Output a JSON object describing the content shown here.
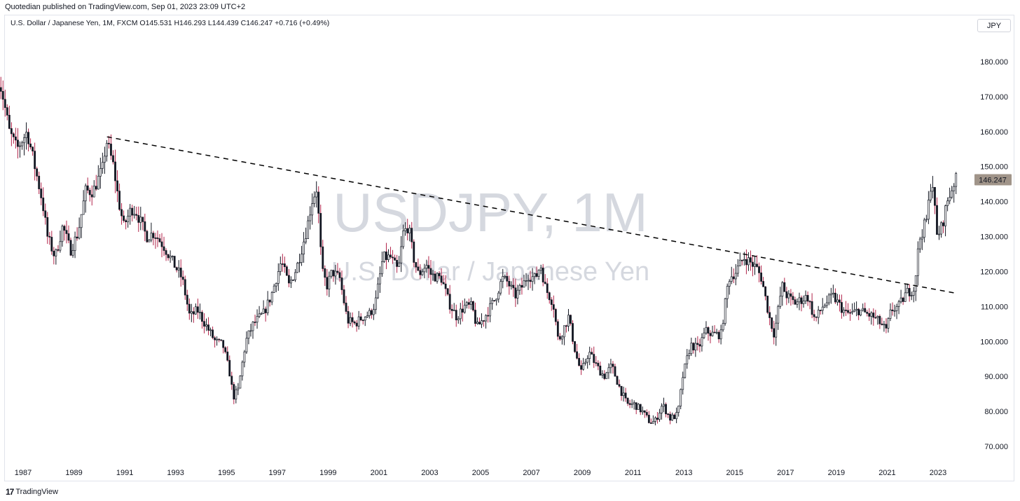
{
  "header": {
    "published": "Quotedian published on TradingView.com, Sep 01, 2023 23:09 UTC+2",
    "symbol_line": "U.S. Dollar / Japanese Yen, 1M, FXCM  O145.531  H146.293  L144.439  C146.247  +0.716 (+0.49%)",
    "currency_button": "JPY"
  },
  "watermark": {
    "ticker": "USDJPY, 1M",
    "name": "U.S. Dollar / Japanese Yen"
  },
  "footer": {
    "brand": "TradingView",
    "brand_mark": "17"
  },
  "colors": {
    "up": "#ffffff",
    "down": "#131722",
    "wick": "#131722",
    "wick_down_accent": "#b2244a",
    "price_tag_bg": "#a09489",
    "trendline": "#000000"
  },
  "chart_data": {
    "type": "candlestick",
    "ylim": [
      65,
      190
    ],
    "xlim": [
      1986.0,
      2024.4
    ],
    "y_ticks": [
      "180.000",
      "170.000",
      "160.000",
      "150.000",
      "140.000",
      "130.000",
      "120.000",
      "110.000",
      "100.000",
      "90.000",
      "80.000",
      "70.000"
    ],
    "y_tick_values": [
      180,
      170,
      160,
      150,
      140,
      130,
      120,
      110,
      100,
      90,
      80,
      70
    ],
    "x_ticks": [
      "1987",
      "1989",
      "1991",
      "1993",
      "1995",
      "1997",
      "1999",
      "2001",
      "2003",
      "2005",
      "2007",
      "2009",
      "2011",
      "2013",
      "2015",
      "2017",
      "2019",
      "2021",
      "2023"
    ],
    "x_tick_values": [
      1987,
      1989,
      1991,
      1993,
      1995,
      1997,
      1999,
      2001,
      2003,
      2005,
      2007,
      2009,
      2011,
      2013,
      2015,
      2017,
      2019,
      2021,
      2023
    ],
    "last_price": "146.247",
    "last_price_value": 146.247,
    "trendline": {
      "style": "dashed",
      "from": [
        1990.3,
        158.5
      ],
      "to": [
        2023.7,
        113.8
      ]
    },
    "anchors": [
      [
        1986.0,
        177
      ],
      [
        1986.2,
        172
      ],
      [
        1986.5,
        160
      ],
      [
        1986.8,
        155
      ],
      [
        1987.2,
        160
      ],
      [
        1987.5,
        150
      ],
      [
        1987.8,
        140
      ],
      [
        1988.0,
        130
      ],
      [
        1988.3,
        124
      ],
      [
        1988.6,
        133
      ],
      [
        1988.9,
        126
      ],
      [
        1989.2,
        131
      ],
      [
        1989.5,
        143
      ],
      [
        1989.8,
        143
      ],
      [
        1990.2,
        150
      ],
      [
        1990.3,
        158
      ],
      [
        1990.6,
        150
      ],
      [
        1990.8,
        140
      ],
      [
        1991.0,
        133
      ],
      [
        1991.3,
        138
      ],
      [
        1991.5,
        137
      ],
      [
        1991.9,
        130
      ],
      [
        1992.2,
        131
      ],
      [
        1992.6,
        127
      ],
      [
        1992.9,
        123
      ],
      [
        1993.3,
        118
      ],
      [
        1993.6,
        107
      ],
      [
        1993.9,
        109
      ],
      [
        1994.2,
        105
      ],
      [
        1994.6,
        100
      ],
      [
        1994.9,
        99
      ],
      [
        1995.2,
        90
      ],
      [
        1995.3,
        84
      ],
      [
        1995.5,
        86
      ],
      [
        1995.8,
        100
      ],
      [
        1996.1,
        105
      ],
      [
        1996.5,
        108
      ],
      [
        1996.8,
        113
      ],
      [
        1997.2,
        123
      ],
      [
        1997.5,
        116
      ],
      [
        1997.8,
        121
      ],
      [
        1998.2,
        132
      ],
      [
        1998.4,
        140
      ],
      [
        1998.6,
        144
      ],
      [
        1998.8,
        120
      ],
      [
        1999.0,
        116
      ],
      [
        1999.2,
        120
      ],
      [
        1999.5,
        118
      ],
      [
        1999.8,
        106
      ],
      [
        2000.1,
        105
      ],
      [
        2000.4,
        107
      ],
      [
        2000.7,
        108
      ],
      [
        2000.9,
        111
      ],
      [
        2001.2,
        124
      ],
      [
        2001.5,
        124
      ],
      [
        2001.8,
        120
      ],
      [
        2002.0,
        131
      ],
      [
        2002.2,
        133
      ],
      [
        2002.4,
        124
      ],
      [
        2002.6,
        119
      ],
      [
        2002.9,
        122
      ],
      [
        2003.1,
        119
      ],
      [
        2003.5,
        118
      ],
      [
        2003.8,
        111
      ],
      [
        2004.1,
        107
      ],
      [
        2004.4,
        110
      ],
      [
        2004.7,
        110
      ],
      [
        2004.9,
        104
      ],
      [
        2005.2,
        107
      ],
      [
        2005.6,
        112
      ],
      [
        2005.9,
        118
      ],
      [
        2006.1,
        117
      ],
      [
        2006.4,
        113
      ],
      [
        2006.7,
        116
      ],
      [
        2006.9,
        119
      ],
      [
        2007.2,
        118
      ],
      [
        2007.4,
        122
      ],
      [
        2007.6,
        115
      ],
      [
        2007.9,
        111
      ],
      [
        2008.1,
        100
      ],
      [
        2008.5,
        107
      ],
      [
        2008.8,
        96
      ],
      [
        2009.0,
        91
      ],
      [
        2009.3,
        97
      ],
      [
        2009.6,
        93
      ],
      [
        2009.9,
        90
      ],
      [
        2010.2,
        93
      ],
      [
        2010.5,
        87
      ],
      [
        2010.8,
        82
      ],
      [
        2011.1,
        82
      ],
      [
        2011.4,
        80
      ],
      [
        2011.7,
        77
      ],
      [
        2011.9,
        77
      ],
      [
        2012.2,
        82
      ],
      [
        2012.5,
        78
      ],
      [
        2012.8,
        79
      ],
      [
        2013.0,
        90
      ],
      [
        2013.3,
        99
      ],
      [
        2013.6,
        98
      ],
      [
        2013.9,
        103
      ],
      [
        2014.2,
        102
      ],
      [
        2014.5,
        102
      ],
      [
        2014.8,
        118
      ],
      [
        2015.1,
        120
      ],
      [
        2015.4,
        124
      ],
      [
        2015.6,
        123
      ],
      [
        2015.9,
        121
      ],
      [
        2016.1,
        118
      ],
      [
        2016.4,
        107
      ],
      [
        2016.6,
        102
      ],
      [
        2016.9,
        116
      ],
      [
        2017.1,
        113
      ],
      [
        2017.4,
        111
      ],
      [
        2017.7,
        112
      ],
      [
        2017.9,
        113
      ],
      [
        2018.2,
        106
      ],
      [
        2018.5,
        110
      ],
      [
        2018.9,
        113
      ],
      [
        2019.1,
        111
      ],
      [
        2019.4,
        108
      ],
      [
        2019.7,
        108
      ],
      [
        2019.9,
        109
      ],
      [
        2020.2,
        108
      ],
      [
        2020.5,
        107
      ],
      [
        2020.8,
        105
      ],
      [
        2021.0,
        103
      ],
      [
        2021.2,
        109
      ],
      [
        2021.5,
        110
      ],
      [
        2021.8,
        114
      ],
      [
        2022.1,
        115
      ],
      [
        2022.3,
        129
      ],
      [
        2022.6,
        135
      ],
      [
        2022.8,
        148
      ],
      [
        2022.9,
        139
      ],
      [
        2023.0,
        130
      ],
      [
        2023.2,
        133
      ],
      [
        2023.4,
        140
      ],
      [
        2023.6,
        144
      ],
      [
        2023.7,
        146.2
      ]
    ]
  }
}
